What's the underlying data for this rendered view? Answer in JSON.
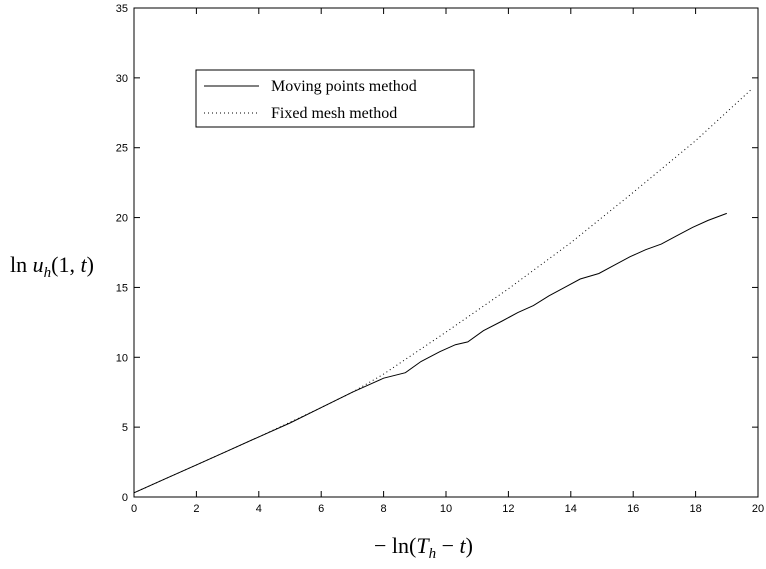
{
  "chart_data": {
    "type": "line",
    "title": "",
    "xlabel": "−ln(T_h − t)",
    "ylabel": "ln u_h(1, t)",
    "xlim": [
      0,
      20
    ],
    "ylim": [
      0,
      35
    ],
    "xticks": [
      0,
      2,
      4,
      6,
      8,
      10,
      12,
      14,
      16,
      18,
      20
    ],
    "yticks": [
      0,
      5,
      10,
      15,
      20,
      25,
      30,
      35
    ],
    "grid": false,
    "legend_position": "top-left",
    "series": [
      {
        "name": "Moving points method",
        "style": "solid",
        "color": "#000000",
        "x": [
          0.0,
          1.0,
          2.0,
          3.0,
          4.0,
          5.0,
          6.0,
          7.0,
          7.5,
          8.0,
          8.7,
          9.2,
          9.8,
          10.3,
          10.7,
          11.2,
          11.8,
          12.3,
          12.8,
          13.3,
          13.8,
          14.3,
          14.9,
          15.4,
          15.9,
          16.4,
          16.9,
          17.4,
          17.9,
          18.4,
          19.0
        ],
        "y": [
          0.3,
          1.3,
          2.3,
          3.3,
          4.3,
          5.3,
          6.4,
          7.5,
          8.0,
          8.5,
          8.9,
          9.7,
          10.4,
          10.9,
          11.1,
          11.9,
          12.6,
          13.2,
          13.7,
          14.4,
          15.0,
          15.6,
          16.0,
          16.6,
          17.2,
          17.7,
          18.1,
          18.7,
          19.3,
          19.8,
          20.3
        ],
        "y_note": ""
      },
      {
        "name": "Fixed mesh method",
        "style": "dotted",
        "color": "#000000",
        "x": [
          0.0,
          2.0,
          4.0,
          6.0,
          7.0,
          8.0,
          10.0,
          12.0,
          14.0,
          16.0,
          18.0,
          19.8
        ],
        "y": [
          0.3,
          2.3,
          4.3,
          6.4,
          7.5,
          8.8,
          11.8,
          14.9,
          18.2,
          21.8,
          25.5,
          29.2
        ]
      }
    ]
  }
}
